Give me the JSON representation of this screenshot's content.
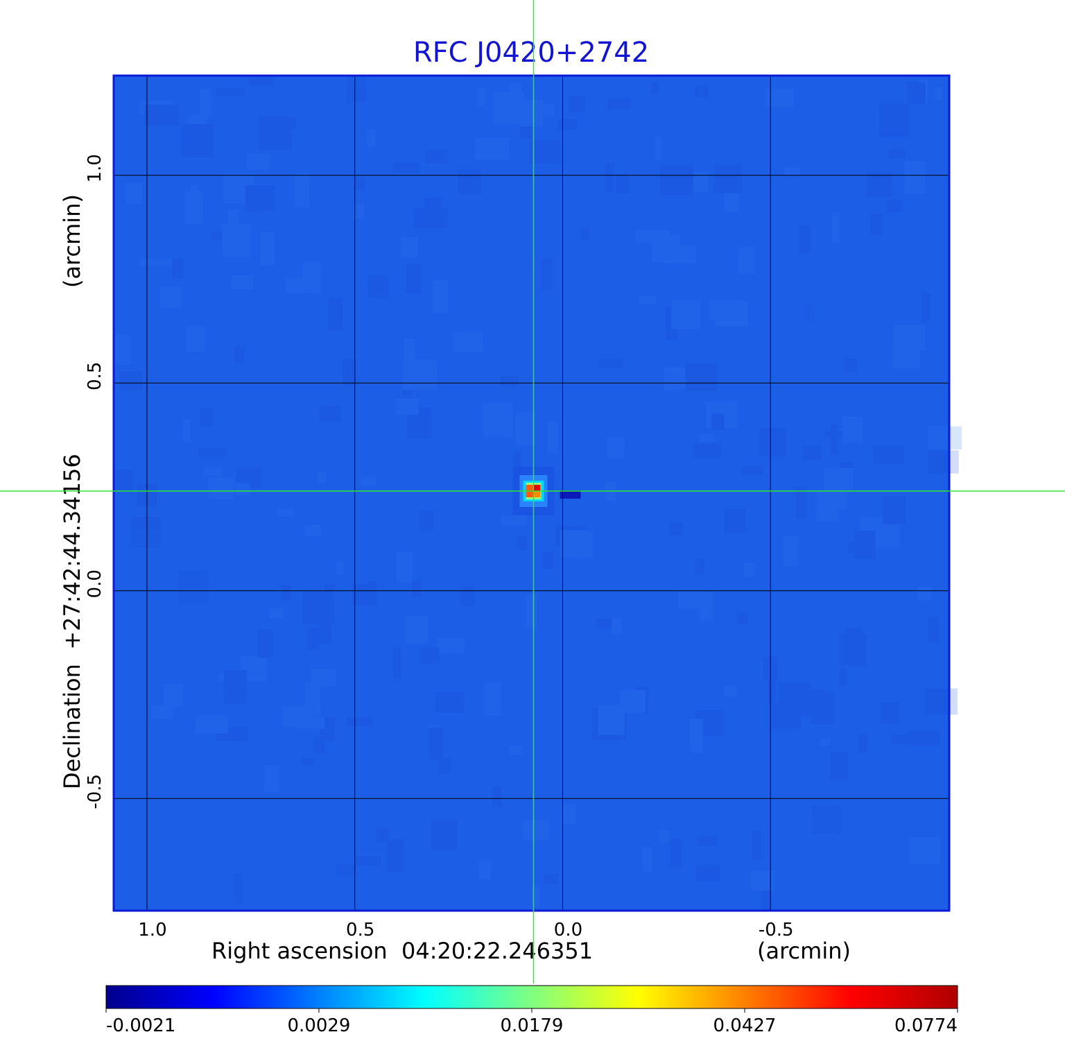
{
  "chart_data": {
    "type": "heatmap",
    "title": "RFC J0420+2742",
    "xlabel": "Right ascension  04:20:22.246351",
    "xunit": "(arcmin)",
    "ylabel": "Declination  +27:42:44.34156",
    "yunit": "(arcmin)",
    "x_ticks": [
      "1.0",
      "0.5",
      "0.0",
      "-0.5"
    ],
    "y_ticks": [
      "1.0",
      "0.5",
      "0.0",
      "-0.5"
    ],
    "x_tick_values": [
      1.0,
      0.5,
      0.0,
      -0.5
    ],
    "y_tick_values": [
      1.0,
      0.5,
      0.0,
      -0.5
    ],
    "xlim": [
      1.08,
      -0.93
    ],
    "ylim": [
      -0.77,
      1.24
    ],
    "grid": true,
    "crosshair": {
      "x": 0.07,
      "y": 0.24
    },
    "source": {
      "x": 0.07,
      "y": 0.24,
      "peak": 0.0774
    },
    "colorbar": {
      "ticks": [
        "-0.0021",
        "0.0029",
        "0.0179",
        "0.0427",
        "0.0774"
      ],
      "colors": [
        "#00008b",
        "#0000ff",
        "#0080ff",
        "#00ffff",
        "#80ff80",
        "#ffff00",
        "#ff8000",
        "#ff0000",
        "#b00000"
      ]
    },
    "background_color": "#1d5ee6"
  }
}
